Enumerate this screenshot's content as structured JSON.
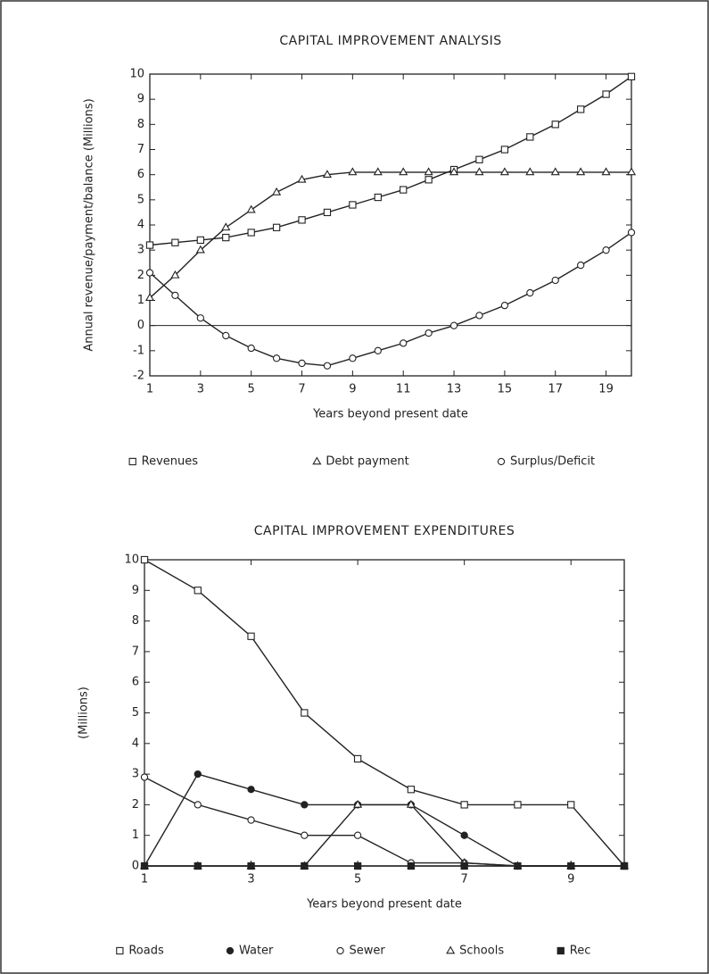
{
  "chart_data": [
    {
      "type": "line",
      "title": "CAPITAL IMPROVEMENT ANALYSIS",
      "x_label": "Years beyond present date",
      "y_label": "Annual revenue/payment/balance (Millions)",
      "x": [
        1,
        2,
        3,
        4,
        5,
        6,
        7,
        8,
        9,
        10,
        11,
        12,
        13,
        14,
        15,
        16,
        17,
        18,
        19,
        20
      ],
      "xlim": [
        1,
        20
      ],
      "xticks": [
        1,
        3,
        5,
        7,
        9,
        11,
        13,
        15,
        17,
        19
      ],
      "ylim": [
        -2,
        10
      ],
      "yticks": [
        -2,
        -1,
        0,
        1,
        2,
        3,
        4,
        5,
        6,
        7,
        8,
        9,
        10
      ],
      "zero_line": true,
      "grid": false,
      "series": [
        {
          "name": "Revenues",
          "color": "#222222",
          "marker": "square",
          "values": [
            3.2,
            3.3,
            3.4,
            3.5,
            3.7,
            3.9,
            4.2,
            4.5,
            4.8,
            5.1,
            5.4,
            5.8,
            6.2,
            6.6,
            7.0,
            7.5,
            8.0,
            8.6,
            9.2,
            9.9
          ]
        },
        {
          "name": "Debt payment",
          "color": "#222222",
          "marker": "triangle",
          "values": [
            1.1,
            2.0,
            3.0,
            3.9,
            4.6,
            5.3,
            5.8,
            6.0,
            6.1,
            6.1,
            6.1,
            6.1,
            6.1,
            6.1,
            6.1,
            6.1,
            6.1,
            6.1,
            6.1,
            6.1
          ]
        },
        {
          "name": "Surplus/Deficit",
          "color": "#222222",
          "marker": "circle",
          "values": [
            2.1,
            1.2,
            0.3,
            -0.4,
            -0.9,
            -1.3,
            -1.5,
            -1.6,
            -1.3,
            -1.0,
            -0.7,
            -0.3,
            0.0,
            0.4,
            0.8,
            1.3,
            1.8,
            2.4,
            3.0,
            3.7
          ]
        }
      ]
    },
    {
      "type": "line",
      "title": "CAPITAL IMPROVEMENT EXPENDITURES",
      "x_label": "Years beyond present date",
      "y_label": "(Millions)",
      "x": [
        1,
        2,
        3,
        4,
        5,
        6,
        7,
        8,
        9,
        10
      ],
      "xlim": [
        1,
        10
      ],
      "xticks": [
        1,
        3,
        5,
        7,
        9
      ],
      "ylim": [
        0,
        10
      ],
      "yticks": [
        0,
        1,
        2,
        3,
        4,
        5,
        6,
        7,
        8,
        9,
        10
      ],
      "zero_line": false,
      "grid": false,
      "series": [
        {
          "name": "Roads",
          "color": "#222222",
          "marker": "square",
          "values": [
            10,
            9,
            7.5,
            5,
            3.5,
            2.5,
            2,
            2,
            2,
            0
          ]
        },
        {
          "name": "Water",
          "color": "#222222",
          "marker": "dot",
          "values": [
            0,
            3,
            2.5,
            2,
            2,
            2,
            1,
            0,
            0,
            0
          ]
        },
        {
          "name": "Sewer",
          "color": "#222222",
          "marker": "circle",
          "values": [
            2.9,
            2,
            1.5,
            1,
            1,
            0.1,
            0.1,
            0,
            0,
            0
          ]
        },
        {
          "name": "Schools",
          "color": "#222222",
          "marker": "triangle",
          "values": [
            0,
            0,
            0,
            0,
            2,
            2,
            0.1,
            0,
            0,
            0
          ]
        },
        {
          "name": "Rec",
          "color": "#222222",
          "marker": "filled-square",
          "values": [
            0,
            0,
            0,
            0,
            0,
            0,
            0,
            0,
            0,
            0
          ]
        }
      ]
    }
  ]
}
